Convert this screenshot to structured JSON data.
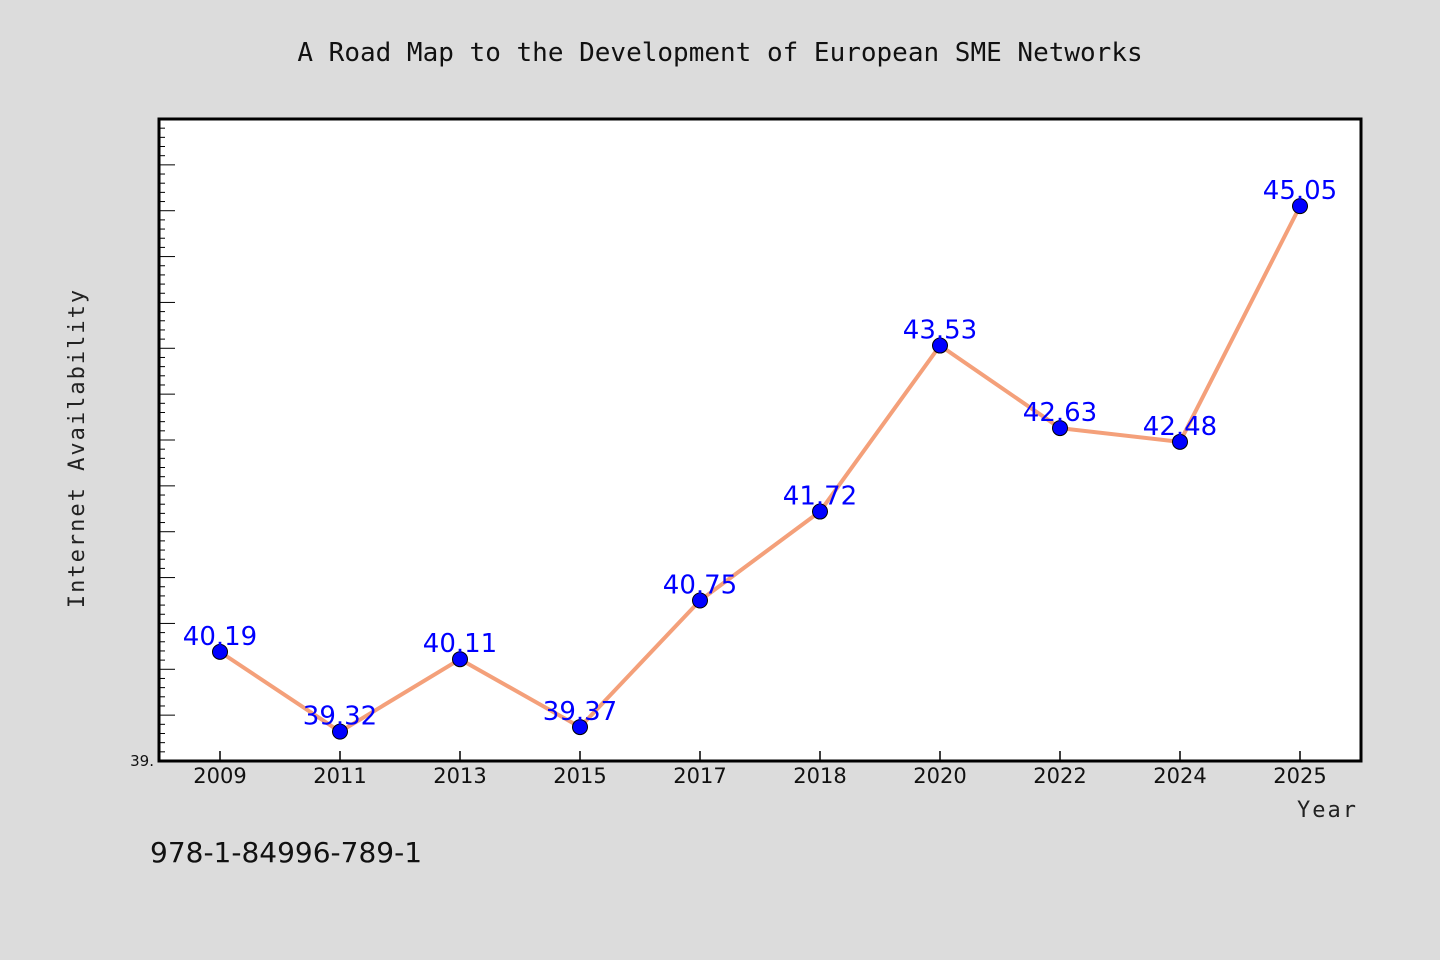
{
  "chart_data": {
    "type": "line",
    "title": "A Road Map to the Development of European SME Networks",
    "xlabel": "Year",
    "ylabel": "Internet Availability",
    "categories": [
      "2009",
      "2011",
      "2013",
      "2015",
      "2017",
      "2018",
      "2020",
      "2022",
      "2024",
      "2025"
    ],
    "series": [
      {
        "values": [
          40.19,
          39.32,
          40.11,
          39.37,
          40.75,
          41.72,
          43.53,
          42.63,
          42.48,
          45.05
        ],
        "labels": [
          "40.19",
          "39.32",
          "40.11",
          "39.37",
          "40.75",
          "41.72",
          "43.53",
          "42.63",
          "42.48",
          "45.05"
        ],
        "line_color": "#f4a07a",
        "marker_color": "#0000ff"
      }
    ],
    "ylim": [
      39.0,
      46.0
    ],
    "y_tick_labels": [
      "39."
    ],
    "grid": false,
    "legend": "none"
  },
  "footer": {
    "isbn": "978-1-84996-789-1"
  }
}
